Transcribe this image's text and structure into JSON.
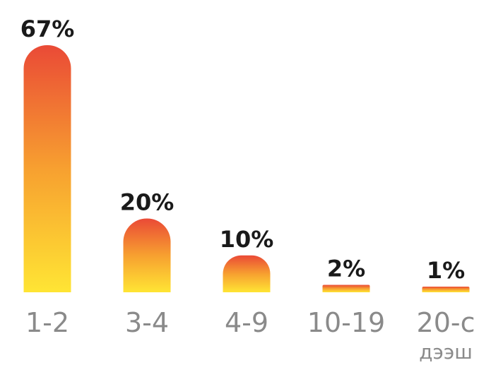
{
  "chart_data": {
    "type": "bar",
    "categories": [
      "1-2",
      "3-4",
      "4-9",
      "10-19",
      "20-с дээш"
    ],
    "category_lines": [
      [
        "1-2"
      ],
      [
        "3-4"
      ],
      [
        "4-9"
      ],
      [
        "10-19"
      ],
      [
        "20-с",
        "дээш"
      ]
    ],
    "values": [
      67,
      20,
      10,
      2,
      1
    ],
    "value_labels": [
      "67%",
      "20%",
      "10%",
      "2%",
      "1%"
    ],
    "ylim": [
      0,
      67
    ],
    "grid": false,
    "legend": "none",
    "colors": {
      "top": "#ea4a36",
      "bottom": "#ffe534",
      "mid": "#f7a030"
    }
  }
}
